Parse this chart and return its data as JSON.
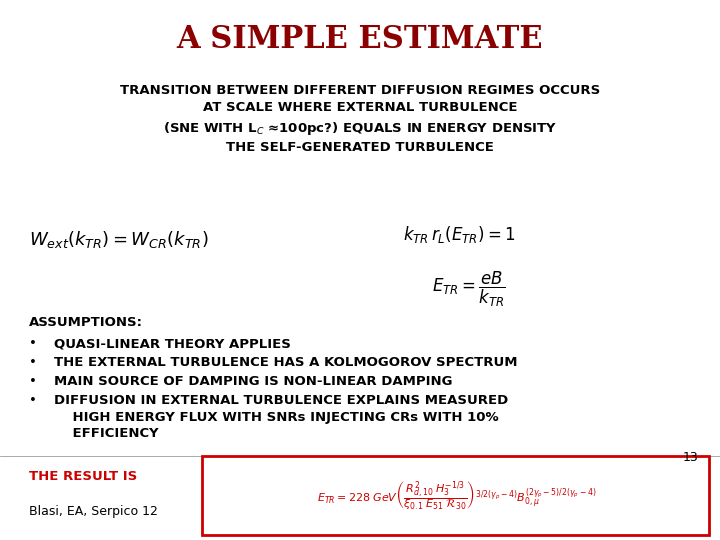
{
  "title": "A SIMPLE ESTIMATE",
  "title_color": "#8B0000",
  "title_fontsize": 22,
  "subtitle_lines": [
    "TRANSITION BETWEEN DIFFERENT DIFFUSION REGIMES OCCURS",
    "AT SCALE WHERE EXTERNAL TURBULENCE",
    "(SNE WITH L$_{C}$ ≈100pc?) EQUALS IN ENERGY DENSITY",
    "THE SELF-GENERATED TURBULENCE"
  ],
  "subtitle_fontsize": 9.5,
  "eq1": "$W_{ext}(k_{TR}) = W_{CR}(k_{TR})$",
  "eq2": "$k_{TR}\\, r_L(E_{TR}) = 1$",
  "eq3": "$E_{TR} = \\dfrac{eB}{k_{TR}}$",
  "assumptions_header": "ASSUMPTIONS:",
  "bullets": [
    "QUASI-LINEAR THEORY APPLIES",
    "THE EXTERNAL TURBULENCE HAS A KOLMOGOROV SPECTRUM",
    "MAIN SOURCE OF DAMPING IS NON-LINEAR DAMPING",
    "DIFFUSION IN EXTERNAL TURBULENCE EXPLAINS MEASURED\n    HIGH ENERGY FLUX WITH SNRs INJECTING CRs WITH 10%\n    EFFICIENCY"
  ],
  "page_number": "13",
  "result_label": "THE RESULT IS",
  "result_eq": "$E_{TR} = 228\\; GeV\\left(\\dfrac{R_{d,10}^2\\; H_3^{-1/3}}{\\xi_{0.1}\\; E_{51}\\; \\mathcal{R}_{30}}\\right)^{3/2(\\gamma_p - 4)} B_{0,\\mu}^{(2\\gamma_p-5)/2(\\gamma_p-4)}$",
  "author": "Blasi, EA, Serpico 12",
  "background_color": "#ffffff",
  "text_color": "#000000",
  "red_color": "#cc0000"
}
